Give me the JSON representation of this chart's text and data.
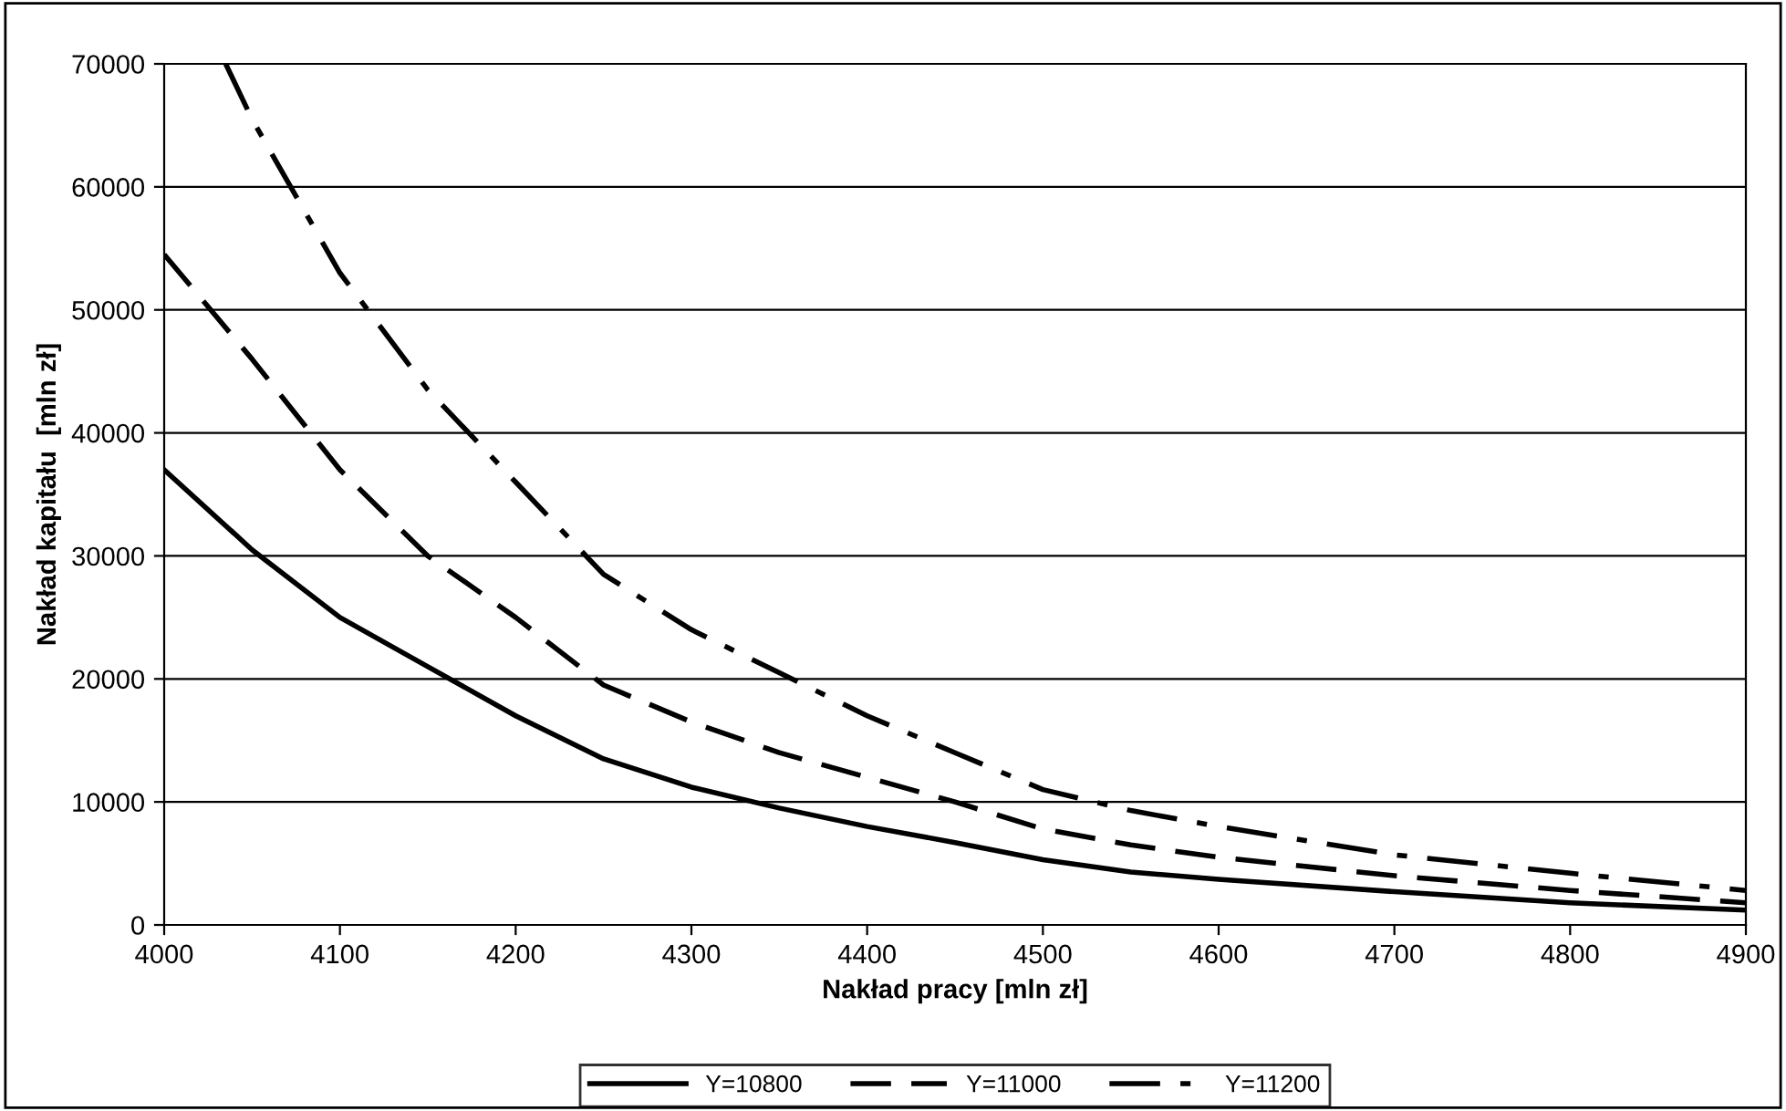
{
  "chart_data": {
    "type": "line",
    "xlabel": "Nakład pracy [mln zł]",
    "ylabel": "Nakład kapitału  [mln zł]",
    "xlim": [
      4000,
      4900
    ],
    "xticks": [
      4000,
      4100,
      4200,
      4300,
      4400,
      4500,
      4600,
      4700,
      4800,
      4900
    ],
    "ylim": [
      0,
      70000
    ],
    "yticks": [
      0,
      10000,
      20000,
      30000,
      40000,
      50000,
      60000,
      70000
    ],
    "grid": "y",
    "legend": "bottom",
    "marker": "none",
    "series": [
      {
        "name": "Y=10800",
        "color": "#000000",
        "line_style": "solid",
        "x": [
          4000,
          4050,
          4100,
          4150,
          4200,
          4250,
          4300,
          4350,
          4400,
          4450,
          4500,
          4550,
          4600,
          4700,
          4800,
          4900
        ],
        "values": [
          37000,
          30500,
          25000,
          21000,
          17000,
          13500,
          11200,
          9500,
          8000,
          6700,
          5300,
          4300,
          3700,
          2700,
          1800,
          1200
        ]
      },
      {
        "name": "Y=11000",
        "color": "#000000",
        "line_style": "dashed",
        "x": [
          4000,
          4050,
          4100,
          4150,
          4200,
          4250,
          4300,
          4350,
          4400,
          4450,
          4500,
          4550,
          4600,
          4700,
          4800,
          4900
        ],
        "values": [
          54500,
          46000,
          37000,
          30000,
          25000,
          19500,
          16500,
          14000,
          12000,
          10000,
          7800,
          6500,
          5500,
          4000,
          2800,
          1800
        ]
      },
      {
        "name": "Y=11200",
        "color": "#000000",
        "line_style": "dashdot",
        "x": [
          4035,
          4050,
          4100,
          4150,
          4200,
          4250,
          4300,
          4350,
          4400,
          4450,
          4500,
          4550,
          4600,
          4700,
          4800,
          4900
        ],
        "values": [
          70000,
          65500,
          53000,
          43500,
          36000,
          28500,
          24000,
          20500,
          17000,
          14000,
          11000,
          9300,
          8000,
          5700,
          4200,
          2800
        ]
      }
    ]
  }
}
